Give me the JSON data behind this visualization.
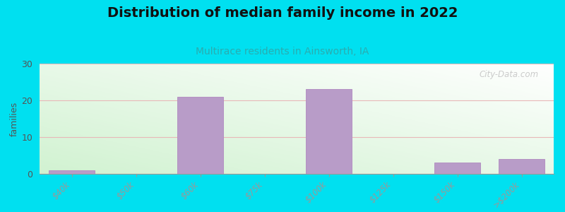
{
  "title": "Distribution of median family income in 2022",
  "subtitle": "Multirace residents in Ainsworth, IA",
  "categories": [
    "$40k",
    "$50k",
    "$60k",
    "$75k",
    "$100k",
    "$125k",
    "$150k",
    ">$200k"
  ],
  "values": [
    1,
    0,
    21,
    0,
    23,
    0,
    3,
    4
  ],
  "bar_color": "#b89cc8",
  "bar_edge_color": "#b089c0",
  "ylabel": "families",
  "ylim": [
    0,
    30
  ],
  "yticks": [
    0,
    10,
    20,
    30
  ],
  "background_outer": "#00e0f0",
  "title_fontsize": 14,
  "subtitle_fontsize": 10,
  "subtitle_color": "#2aacb0",
  "watermark": "City-Data.com",
  "grid_color": "#e8b8b8",
  "tick_label_color": "#cc4444"
}
